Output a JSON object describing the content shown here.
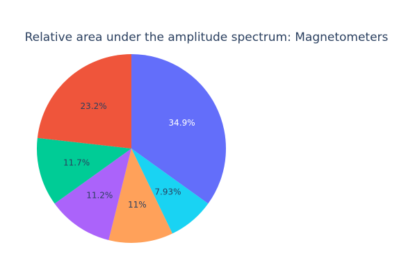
{
  "chart_data": {
    "type": "pie",
    "title": "Relative area under the amplitude spectrum: Magnetometers",
    "slices": [
      {
        "label": "34.9%",
        "value": 34.9,
        "color": "#636efa",
        "text_color": "#ffffff"
      },
      {
        "label": "7.93%",
        "value": 7.93,
        "color": "#19d3f3",
        "text_color": "#2a3f5f"
      },
      {
        "label": "11%",
        "value": 11.0,
        "color": "#ffa15a",
        "text_color": "#2a3f5f"
      },
      {
        "label": "11.2%",
        "value": 11.2,
        "color": "#ab63fa",
        "text_color": "#2a3f5f"
      },
      {
        "label": "11.7%",
        "value": 11.7,
        "color": "#00cc96",
        "text_color": "#2a3f5f"
      },
      {
        "label": "23.2%",
        "value": 23.2,
        "color": "#ef553b",
        "text_color": "#2a3f5f"
      }
    ],
    "direction": "clockwise",
    "start": "12 o'clock",
    "legend": "none"
  }
}
